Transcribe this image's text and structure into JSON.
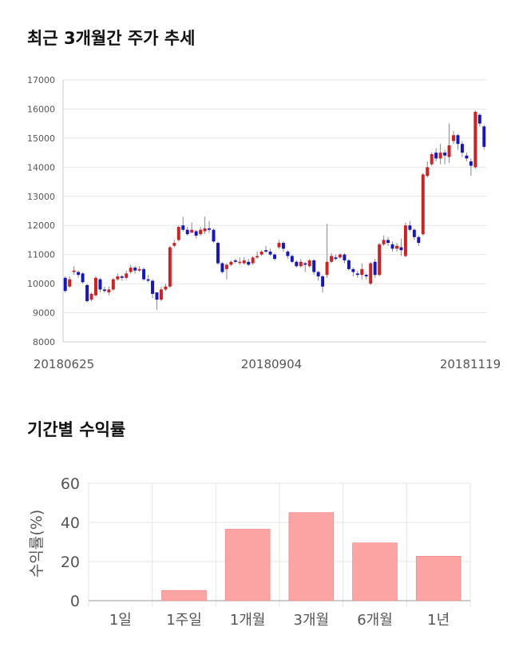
{
  "sections": {
    "price_title": "최근 3개월간 주가 추세",
    "return_title": "기간별 수익률"
  },
  "chart_data": [
    {
      "type": "candlestick",
      "title": "최근 3개월간 주가 추세",
      "ylim": [
        8000,
        17000
      ],
      "y_ticks": [
        "17000",
        "16000",
        "15000",
        "14000",
        "13000",
        "12000",
        "11000",
        "10000",
        "9000",
        "8000"
      ],
      "x_tick_labels": [
        "20180625",
        "20180904",
        "20181119"
      ],
      "grid": "horizontal",
      "up_color": "#d21f1f",
      "down_color": "#1414c8",
      "candles": [
        [
          10200,
          9750,
          10250,
          9700
        ],
        [
          9900,
          10150,
          10250,
          9850
        ],
        [
          10400,
          10450,
          10600,
          10300
        ],
        [
          10400,
          10300,
          10450,
          10200
        ],
        [
          10350,
          10050,
          10400,
          10000
        ],
        [
          9950,
          9400,
          10000,
          9350
        ],
        [
          9450,
          9650,
          9700,
          9400
        ],
        [
          9600,
          10200,
          10250,
          9550
        ],
        [
          10150,
          9800,
          10200,
          9700
        ],
        [
          9800,
          9750,
          9900,
          9700
        ],
        [
          9700,
          9800,
          9900,
          9600
        ],
        [
          9800,
          10150,
          10200,
          9750
        ],
        [
          10150,
          10250,
          10350,
          10100
        ],
        [
          10250,
          10200,
          10300,
          10100
        ],
        [
          10200,
          10350,
          10450,
          10150
        ],
        [
          10400,
          10550,
          10650,
          10350
        ],
        [
          10550,
          10450,
          10600,
          10350
        ],
        [
          10450,
          10500,
          10600,
          10400
        ],
        [
          10500,
          10150,
          10550,
          10100
        ],
        [
          10150,
          10100,
          10300,
          10050
        ],
        [
          10100,
          9650,
          10150,
          9500
        ],
        [
          9700,
          9450,
          9700,
          9100
        ],
        [
          9450,
          9800,
          9900,
          9400
        ],
        [
          9800,
          9900,
          10000,
          9750
        ],
        [
          9900,
          11250,
          11300,
          9850
        ],
        [
          11300,
          11400,
          11500,
          11250
        ],
        [
          11500,
          11950,
          12000,
          11450
        ],
        [
          12000,
          11850,
          12300,
          11800
        ],
        [
          11850,
          11700,
          11950,
          11650
        ],
        [
          11750,
          11850,
          12100,
          11750
        ],
        [
          11800,
          11650,
          11850,
          11550
        ],
        [
          11700,
          11850,
          11950,
          11650
        ],
        [
          11800,
          11900,
          12300,
          11700
        ],
        [
          11900,
          11850,
          12150,
          11750
        ],
        [
          11850,
          11450,
          11900,
          11400
        ],
        [
          11400,
          10700,
          11450,
          10650
        ],
        [
          10700,
          10400,
          10750,
          10350
        ],
        [
          10500,
          10650,
          10700,
          10150
        ],
        [
          10650,
          10750,
          10800,
          10600
        ],
        [
          10800,
          10750,
          10850,
          10700
        ],
        [
          10750,
          10750,
          10900,
          10650
        ],
        [
          10700,
          10800,
          10900,
          10650
        ],
        [
          10750,
          10650,
          10850,
          10600
        ],
        [
          10700,
          10900,
          10950,
          10650
        ],
        [
          10900,
          10950,
          11100,
          10850
        ],
        [
          11000,
          11100,
          11150,
          10950
        ],
        [
          11150,
          11100,
          11300,
          11050
        ],
        [
          11100,
          11000,
          11200,
          10950
        ],
        [
          11000,
          10850,
          11050,
          10800
        ],
        [
          11250,
          11400,
          11500,
          11200
        ],
        [
          11400,
          11200,
          11450,
          11100
        ],
        [
          11100,
          10950,
          11150,
          10850
        ],
        [
          10950,
          10750,
          11000,
          10700
        ],
        [
          10750,
          10600,
          10800,
          10550
        ],
        [
          10600,
          10750,
          10850,
          10550
        ],
        [
          10700,
          10650,
          10750,
          10400
        ],
        [
          10600,
          10800,
          10850,
          10550
        ],
        [
          10800,
          10400,
          10850,
          10300
        ],
        [
          10400,
          10250,
          10450,
          10100
        ],
        [
          10250,
          9900,
          10300,
          9700
        ],
        [
          10300,
          10750,
          12050,
          10200
        ],
        [
          10750,
          10950,
          11050,
          10700
        ],
        [
          10900,
          10850,
          11000,
          10800
        ],
        [
          10900,
          11000,
          11050,
          10850
        ],
        [
          11000,
          10800,
          11050,
          10700
        ],
        [
          10800,
          10500,
          10850,
          10450
        ],
        [
          10500,
          10400,
          10550,
          10250
        ],
        [
          10350,
          10300,
          10450,
          10200
        ],
        [
          10300,
          10500,
          10700,
          10150
        ],
        [
          10300,
          10250,
          10350,
          10150
        ],
        [
          10000,
          10700,
          10750,
          9950
        ],
        [
          10750,
          10300,
          10850,
          10200
        ],
        [
          10300,
          11350,
          11400,
          10250
        ],
        [
          11350,
          11500,
          11650,
          11300
        ],
        [
          11500,
          11400,
          11600,
          11300
        ],
        [
          11350,
          11200,
          11450,
          11100
        ],
        [
          11200,
          11300,
          11400,
          11100
        ],
        [
          11250,
          11150,
          11550,
          10950
        ],
        [
          10950,
          12000,
          12100,
          10900
        ],
        [
          12000,
          11850,
          12150,
          11800
        ],
        [
          11850,
          11600,
          11900,
          11500
        ],
        [
          11600,
          11400,
          11650,
          11300
        ],
        [
          11700,
          13750,
          13800,
          11650
        ],
        [
          13700,
          14000,
          14200,
          13650
        ],
        [
          14100,
          14450,
          14500,
          14050
        ],
        [
          14500,
          14300,
          14650,
          14200
        ],
        [
          14300,
          14500,
          14800,
          14100
        ],
        [
          14500,
          14400,
          14600,
          14100
        ],
        [
          14350,
          14750,
          15500,
          14150
        ],
        [
          14900,
          15100,
          15250,
          14800
        ],
        [
          15100,
          14800,
          15150,
          14600
        ],
        [
          14800,
          14500,
          14900,
          14350
        ],
        [
          14400,
          14300,
          14500,
          14200
        ],
        [
          14200,
          14050,
          14300,
          13700
        ],
        [
          14000,
          15900,
          15950,
          13950
        ],
        [
          15800,
          15500,
          15850,
          15400
        ],
        [
          15400,
          14700,
          15450,
          14600
        ]
      ]
    },
    {
      "type": "bar",
      "title": "기간별 수익률",
      "categories": [
        "1일",
        "1주일",
        "1개월",
        "3개월",
        "6개월",
        "1년"
      ],
      "values": [
        0,
        5.2,
        36.5,
        45,
        29.5,
        22.7
      ],
      "ylabel": "수익률(%)",
      "ylim": [
        0,
        60
      ],
      "y_ticks": [
        "0",
        "20",
        "40",
        "60"
      ],
      "grid": "both",
      "bar_color": "#fca4a4"
    }
  ]
}
